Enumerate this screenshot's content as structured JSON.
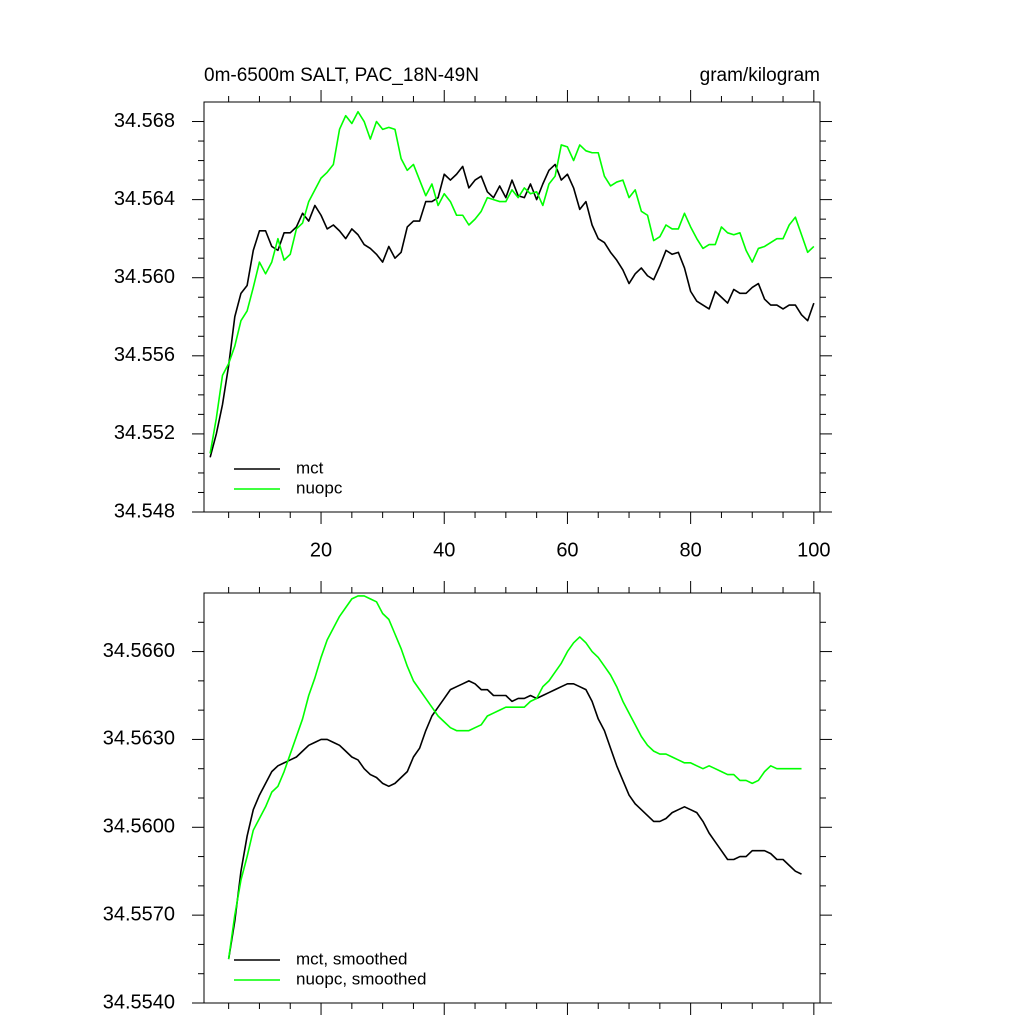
{
  "chart_data": [
    {
      "type": "line",
      "title": "0m-6500m SALT, PAC_18N-49N",
      "units": "gram/kilogram",
      "xlim": [
        1,
        101
      ],
      "ylim": [
        34.548,
        34.569
      ],
      "xticks": [
        20,
        40,
        60,
        80,
        100
      ],
      "xtick_labels": true,
      "xminorticks": [
        5,
        10,
        15,
        25,
        30,
        35,
        45,
        50,
        55,
        65,
        70,
        75,
        85,
        90,
        95
      ],
      "yticks": [
        34.548,
        34.552,
        34.556,
        {
          "value": 34.56,
          "label": "34.560"
        },
        34.564,
        34.568
      ],
      "yminorticks": [
        34.549,
        34.55,
        34.551,
        34.553,
        34.554,
        34.555,
        34.557,
        34.558,
        34.559,
        34.561,
        34.562,
        34.563,
        34.565,
        34.566,
        34.567
      ],
      "legend": "lower left",
      "x": [
        2,
        3,
        4,
        5,
        6,
        7,
        8,
        9,
        10,
        11,
        12,
        13,
        14,
        15,
        16,
        17,
        18,
        19,
        20,
        21,
        22,
        23,
        24,
        25,
        26,
        27,
        28,
        29,
        30,
        31,
        32,
        33,
        34,
        35,
        36,
        37,
        38,
        39,
        40,
        41,
        42,
        43,
        44,
        45,
        46,
        47,
        48,
        49,
        50,
        51,
        52,
        53,
        54,
        55,
        56,
        57,
        58,
        59,
        60,
        61,
        62,
        63,
        64,
        65,
        66,
        67,
        68,
        69,
        70,
        71,
        72,
        73,
        74,
        75,
        76,
        77,
        78,
        79,
        80,
        81,
        82,
        83,
        84,
        85,
        86,
        87,
        88,
        89,
        90,
        91,
        92,
        93,
        94,
        95,
        96,
        97,
        98,
        99,
        100
      ],
      "series": [
        {
          "name": "mct",
          "color": "#000000",
          "values": [
            34.5508,
            34.552,
            34.5535,
            34.5555,
            34.558,
            34.5592,
            34.5596,
            34.5614,
            34.5624,
            34.5624,
            34.5616,
            34.5614,
            34.5623,
            34.5623,
            34.5626,
            34.5633,
            34.5629,
            34.5637,
            34.5632,
            34.5625,
            34.5627,
            34.5624,
            34.562,
            34.5625,
            34.5622,
            34.5617,
            34.5615,
            34.5612,
            34.5608,
            34.5616,
            34.561,
            34.5613,
            34.5626,
            34.5629,
            34.5629,
            34.5639,
            34.5639,
            34.5641,
            34.5653,
            34.565,
            34.5653,
            34.5657,
            34.5646,
            34.565,
            34.5652,
            34.5644,
            34.5641,
            34.5647,
            34.5641,
            34.565,
            34.5642,
            34.5641,
            34.5648,
            34.564,
            34.5648,
            34.5655,
            34.5658,
            34.565,
            34.5653,
            34.5646,
            34.5635,
            34.5639,
            34.5627,
            34.562,
            34.5618,
            34.5613,
            34.5609,
            34.5604,
            34.5597,
            34.5602,
            34.5605,
            34.5601,
            34.5599,
            34.5606,
            34.5614,
            34.5612,
            34.5613,
            34.5605,
            34.5593,
            34.5588,
            34.5586,
            34.5584,
            34.5593,
            34.559,
            34.5587,
            34.5594,
            34.5592,
            34.5592,
            34.5595,
            34.5597,
            34.5589,
            34.5586,
            34.5586,
            34.5584,
            34.5586,
            34.5586,
            34.5581,
            34.5578,
            34.5587
          ]
        },
        {
          "name": "nuopc",
          "color": "#00ff00",
          "values": [
            34.551,
            34.5528,
            34.555,
            34.5556,
            34.5565,
            34.5578,
            34.5583,
            34.5595,
            34.5608,
            34.5602,
            34.5608,
            34.562,
            34.5609,
            34.5612,
            34.5625,
            34.5628,
            34.5639,
            34.5645,
            34.5651,
            34.5654,
            34.5658,
            34.5676,
            34.5683,
            34.5679,
            34.5685,
            34.568,
            34.5671,
            34.568,
            34.5676,
            34.5677,
            34.5676,
            34.5661,
            34.5655,
            34.5658,
            34.565,
            34.5642,
            34.5648,
            34.5637,
            34.5643,
            34.5639,
            34.5632,
            34.5632,
            34.5627,
            34.563,
            34.5634,
            34.5641,
            34.564,
            34.5639,
            34.5639,
            34.5645,
            34.5641,
            34.5646,
            34.5643,
            34.5644,
            34.5637,
            34.5648,
            34.5652,
            34.5668,
            34.5667,
            34.566,
            34.5668,
            34.5665,
            34.5664,
            34.5664,
            34.5652,
            34.5647,
            34.5649,
            34.565,
            34.5641,
            34.5645,
            34.5634,
            34.5632,
            34.5619,
            34.5621,
            34.5627,
            34.5625,
            34.5625,
            34.5633,
            34.5626,
            34.562,
            34.5615,
            34.5617,
            34.5617,
            34.5626,
            34.5623,
            34.5622,
            34.5623,
            34.5614,
            34.5608,
            34.5615,
            34.5616,
            34.5618,
            34.562,
            34.562,
            34.5627,
            34.5631,
            34.5622,
            34.5613,
            34.5616
          ]
        }
      ]
    },
    {
      "type": "line",
      "xlim": [
        1,
        101
      ],
      "ylim": [
        34.554,
        34.568
      ],
      "xticks": [
        20,
        40,
        60,
        80,
        100
      ],
      "xtick_labels": false,
      "xminorticks": [
        5,
        10,
        15,
        25,
        30,
        35,
        45,
        50,
        55,
        65,
        70,
        75,
        85,
        90,
        95
      ],
      "yticks": [
        {
          "value": 34.554,
          "label": "34.5540"
        },
        {
          "value": 34.557,
          "label": "34.5570"
        },
        {
          "value": 34.56,
          "label": "34.5600"
        },
        {
          "value": 34.563,
          "label": "34.5630"
        },
        {
          "value": 34.566,
          "label": "34.5660"
        }
      ],
      "yminorticks": [
        34.555,
        34.556,
        34.558,
        34.559,
        34.561,
        34.562,
        34.564,
        34.565,
        34.567
      ],
      "legend": "lower left",
      "x": [
        5,
        6,
        7,
        8,
        9,
        10,
        11,
        12,
        13,
        14,
        15,
        16,
        17,
        18,
        19,
        20,
        21,
        22,
        23,
        24,
        25,
        26,
        27,
        28,
        29,
        30,
        31,
        32,
        33,
        34,
        35,
        36,
        37,
        38,
        39,
        40,
        41,
        42,
        43,
        44,
        45,
        46,
        47,
        48,
        49,
        50,
        51,
        52,
        53,
        54,
        55,
        56,
        57,
        58,
        59,
        60,
        61,
        62,
        63,
        64,
        65,
        66,
        67,
        68,
        69,
        70,
        71,
        72,
        73,
        74,
        75,
        76,
        77,
        78,
        79,
        80,
        81,
        82,
        83,
        84,
        85,
        86,
        87,
        88,
        89,
        90,
        91,
        92,
        93,
        94,
        95,
        96,
        97,
        98
      ],
      "series": [
        {
          "name": "mct, smoothed",
          "color": "#000000",
          "values": [
            34.5555,
            34.5568,
            34.5585,
            34.5597,
            34.5606,
            34.5611,
            34.5615,
            34.5619,
            34.5621,
            34.5622,
            34.5623,
            34.5624,
            34.5626,
            34.5628,
            34.5629,
            34.563,
            34.563,
            34.5629,
            34.5628,
            34.5626,
            34.5624,
            34.5623,
            34.562,
            34.5618,
            34.5617,
            34.5615,
            34.5614,
            34.5615,
            34.5617,
            34.5619,
            34.5624,
            34.5627,
            34.5633,
            34.5638,
            34.5641,
            34.5644,
            34.5647,
            34.5648,
            34.5649,
            34.565,
            34.5649,
            34.5647,
            34.5647,
            34.5645,
            34.5645,
            34.5645,
            34.5643,
            34.5644,
            34.5644,
            34.5645,
            34.5644,
            34.5645,
            34.5646,
            34.5647,
            34.5648,
            34.5649,
            34.5649,
            34.5648,
            34.5647,
            34.5643,
            34.5637,
            34.5633,
            34.5627,
            34.5621,
            34.5616,
            34.5611,
            34.5608,
            34.5606,
            34.5604,
            34.5602,
            34.5602,
            34.5603,
            34.5605,
            34.5606,
            34.5607,
            34.5606,
            34.5605,
            34.5602,
            34.5598,
            34.5595,
            34.5592,
            34.5589,
            34.5589,
            34.559,
            34.559,
            34.5592,
            34.5592,
            34.5592,
            34.5591,
            34.5589,
            34.5589,
            34.5587,
            34.5585,
            34.5584
          ]
        },
        {
          "name": "nuopc, smoothed",
          "color": "#00ff00",
          "values": [
            34.5555,
            34.557,
            34.5582,
            34.559,
            34.5599,
            34.5603,
            34.5607,
            34.5612,
            34.5614,
            34.5619,
            34.5625,
            34.5631,
            34.5637,
            34.5645,
            34.5651,
            34.5658,
            34.5664,
            34.5668,
            34.5672,
            34.5675,
            34.5678,
            34.5679,
            34.5679,
            34.5678,
            34.5677,
            34.5673,
            34.5671,
            34.5666,
            34.5661,
            34.5655,
            34.565,
            34.5647,
            34.5644,
            34.5641,
            34.5638,
            34.5636,
            34.5634,
            34.5633,
            34.5633,
            34.5633,
            34.5634,
            34.5635,
            34.5638,
            34.5639,
            34.564,
            34.5641,
            34.5641,
            34.5641,
            34.5641,
            34.5643,
            34.5644,
            34.5648,
            34.565,
            34.5653,
            34.5656,
            34.566,
            34.5663,
            34.5665,
            34.5663,
            34.566,
            34.5658,
            34.5655,
            34.5652,
            34.5648,
            34.5643,
            34.5639,
            34.5635,
            34.5631,
            34.5628,
            34.5626,
            34.5625,
            34.5625,
            34.5624,
            34.5623,
            34.5622,
            34.5622,
            34.5621,
            34.562,
            34.5621,
            34.562,
            34.5619,
            34.5618,
            34.5618,
            34.5616,
            34.5616,
            34.5615,
            34.5616,
            34.5619,
            34.5621,
            34.562,
            34.562,
            34.562,
            34.562,
            34.562
          ]
        }
      ]
    }
  ]
}
